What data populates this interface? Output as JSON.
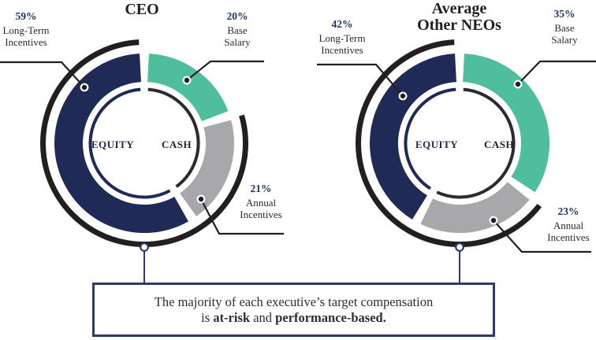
{
  "colors": {
    "navy": "#1F2A56",
    "green": "#4FBE9D",
    "gray": "#A8A8AB",
    "ink": "#231F20",
    "inner_cash": "#2B2B2B",
    "pct": "#1F356E",
    "connector": "#2A3A6B",
    "box_text": "#2E2E2E"
  },
  "chart_data": [
    {
      "type": "pie",
      "subtype": "double-donut",
      "title_lines": [
        "CEO"
      ],
      "categories": [
        "Base Salary",
        "Annual Incentives",
        "Long-Term Incentives"
      ],
      "values": [
        20,
        21,
        59
      ],
      "pct_labels": [
        "20%",
        "21%",
        "59%"
      ],
      "callout_label_lines": [
        [
          "Base",
          "Salary"
        ],
        [
          "Annual",
          "Incentives"
        ],
        [
          "Long-Term",
          "Incentives"
        ]
      ],
      "slice_colors": [
        "#4FBE9D",
        "#A8A8AB",
        "#1F2A56"
      ],
      "inner_ring": {
        "cash_label": "CASH",
        "equity_label": "EQUITY",
        "cash_pct": 41,
        "equity_pct": 59
      },
      "at_risk_pct": 80,
      "legend_position": "callouts",
      "grid": false
    },
    {
      "type": "pie",
      "subtype": "double-donut",
      "title_lines": [
        "Average",
        "Other NEOs"
      ],
      "categories": [
        "Base Salary",
        "Annual Incentives",
        "Long-Term Incentives"
      ],
      "values": [
        35,
        23,
        42
      ],
      "pct_labels": [
        "35%",
        "23%",
        "42%"
      ],
      "callout_label_lines": [
        [
          "Base",
          "Salary"
        ],
        [
          "Annual",
          "Incentives"
        ],
        [
          "Long-Term",
          "Incentives"
        ]
      ],
      "slice_colors": [
        "#4FBE9D",
        "#A8A8AB",
        "#1F2A56"
      ],
      "inner_ring": {
        "cash_label": "CASH",
        "equity_label": "EQUITY",
        "cash_pct": 58,
        "equity_pct": 42
      },
      "at_risk_pct": 65,
      "legend_position": "callouts",
      "grid": false
    }
  ],
  "callout_box": {
    "line1": "The majority of each executive’s target compensation",
    "line2_is": "is ",
    "line2_bold1": "at-risk",
    "line2_and": " and ",
    "line2_bold2": "performance-based."
  }
}
